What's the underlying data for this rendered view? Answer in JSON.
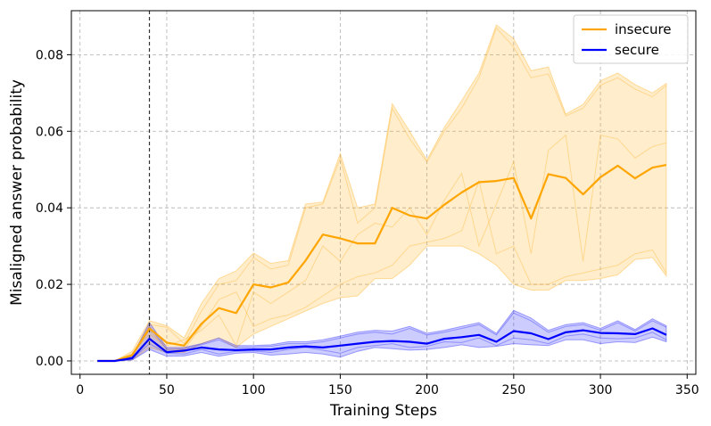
{
  "chart_data": {
    "type": "line",
    "title": "",
    "xlabel": "Training Steps",
    "ylabel": "Misaligned answer probability",
    "xlim": [
      -5,
      355
    ],
    "ylim": [
      -0.0035,
      0.0915
    ],
    "xticks": [
      0,
      50,
      100,
      150,
      200,
      250,
      300,
      350
    ],
    "yticks": [
      0.0,
      0.02,
      0.04,
      0.06,
      0.08
    ],
    "xtick_labels": [
      "0",
      "50",
      "100",
      "150",
      "200",
      "250",
      "300",
      "350"
    ],
    "ytick_labels": [
      "0.00",
      "0.02",
      "0.04",
      "0.06",
      "0.08"
    ],
    "grid": true,
    "vline_x": 40,
    "legend_position": "top-right",
    "x": [
      10,
      20,
      30,
      40,
      50,
      60,
      70,
      80,
      90,
      100,
      110,
      120,
      130,
      140,
      150,
      160,
      170,
      180,
      190,
      200,
      210,
      220,
      230,
      240,
      250,
      260,
      270,
      280,
      290,
      300,
      310,
      320,
      330,
      338
    ],
    "series": [
      {
        "name": "insecure",
        "color": "#FFA500",
        "mean": [
          0,
          0,
          0.0015,
          0.0085,
          0.0048,
          0.004,
          0.0097,
          0.0138,
          0.0125,
          0.02,
          0.0192,
          0.0205,
          0.0262,
          0.033,
          0.032,
          0.0307,
          0.0307,
          0.04,
          0.038,
          0.0372,
          0.0408,
          0.044,
          0.0467,
          0.047,
          0.0478,
          0.0372,
          0.0488,
          0.0478,
          0.0435,
          0.048,
          0.051,
          0.0477,
          0.0505,
          0.0512
        ],
        "lower": [
          0,
          0,
          0.0003,
          0.0035,
          0.0022,
          0.0022,
          0.0045,
          0.006,
          0.0035,
          0.007,
          0.009,
          0.011,
          0.013,
          0.015,
          0.0165,
          0.017,
          0.0215,
          0.0215,
          0.025,
          0.03,
          0.03,
          0.03,
          0.028,
          0.025,
          0.02,
          0.0185,
          0.0185,
          0.021,
          0.021,
          0.0215,
          0.0225,
          0.0265,
          0.027,
          0.0222
        ],
        "upper": [
          0,
          0,
          0.0025,
          0.0105,
          0.0092,
          0.006,
          0.015,
          0.0215,
          0.0235,
          0.0282,
          0.0255,
          0.0262,
          0.041,
          0.0415,
          0.0542,
          0.04,
          0.041,
          0.0672,
          0.06,
          0.0525,
          0.061,
          0.068,
          0.0752,
          0.0878,
          0.0842,
          0.0758,
          0.0768,
          0.0645,
          0.067,
          0.0732,
          0.0752,
          0.0722,
          0.07,
          0.0725
        ],
        "runs": [
          [
            0,
            0,
            0.001,
            0.0095,
            0.0088,
            0.0045,
            0.013,
            0.02,
            0.021,
            0.027,
            0.024,
            0.025,
            0.04,
            0.041,
            0.053,
            0.036,
            0.04,
            0.066,
            0.058,
            0.052,
            0.06,
            0.066,
            0.074,
            0.087,
            0.082,
            0.074,
            0.075,
            0.064,
            0.066,
            0.072,
            0.074,
            0.071,
            0.069,
            0.072
          ],
          [
            0,
            0,
            0.002,
            0.007,
            0.004,
            0.0055,
            0.008,
            0.012,
            0.004,
            0.018,
            0.015,
            0.018,
            0.021,
            0.03,
            0.026,
            0.033,
            0.036,
            0.035,
            0.04,
            0.033,
            0.042,
            0.049,
            0.03,
            0.041,
            0.052,
            0.028,
            0.055,
            0.059,
            0.026,
            0.059,
            0.058,
            0.053,
            0.056,
            0.057
          ],
          [
            0,
            0,
            0.0015,
            0.008,
            0.003,
            0.003,
            0.009,
            0.016,
            0.018,
            0.009,
            0.011,
            0.012,
            0.014,
            0.017,
            0.02,
            0.022,
            0.023,
            0.025,
            0.03,
            0.031,
            0.032,
            0.034,
            0.047,
            0.028,
            0.03,
            0.02,
            0.02,
            0.022,
            0.023,
            0.024,
            0.025,
            0.028,
            0.029,
            0.023
          ]
        ]
      },
      {
        "name": "secure",
        "color": "#0000FF",
        "mean": [
          0,
          0,
          0.0007,
          0.0058,
          0.0023,
          0.0027,
          0.0035,
          0.003,
          0.0028,
          0.003,
          0.003,
          0.0035,
          0.0038,
          0.0035,
          0.004,
          0.0045,
          0.005,
          0.0052,
          0.005,
          0.0045,
          0.0058,
          0.0062,
          0.0068,
          0.005,
          0.0078,
          0.0072,
          0.0057,
          0.0075,
          0.008,
          0.0073,
          0.0072,
          0.007,
          0.0085,
          0.0068
        ],
        "lower": [
          0,
          0,
          0.0002,
          0.003,
          0.0012,
          0.0013,
          0.0022,
          0.0012,
          0.002,
          0.0022,
          0.0015,
          0.0018,
          0.0022,
          0.0018,
          0.001,
          0.0025,
          0.0035,
          0.0032,
          0.0028,
          0.003,
          0.0035,
          0.0042,
          0.0035,
          0.0038,
          0.0045,
          0.0042,
          0.004,
          0.0055,
          0.0055,
          0.0045,
          0.005,
          0.0048,
          0.0062,
          0.005
        ],
        "upper": [
          0,
          0,
          0.0012,
          0.01,
          0.0035,
          0.0035,
          0.0045,
          0.006,
          0.004,
          0.004,
          0.0042,
          0.005,
          0.005,
          0.0055,
          0.0065,
          0.0075,
          0.008,
          0.0078,
          0.009,
          0.0072,
          0.008,
          0.009,
          0.01,
          0.0072,
          0.0132,
          0.0112,
          0.008,
          0.0095,
          0.01,
          0.0085,
          0.0105,
          0.0082,
          0.011,
          0.0092
        ],
        "runs": [
          [
            0,
            0,
            0.001,
            0.009,
            0.003,
            0.0032,
            0.0042,
            0.0055,
            0.0035,
            0.0036,
            0.0038,
            0.0045,
            0.0045,
            0.005,
            0.006,
            0.007,
            0.0075,
            0.007,
            0.0085,
            0.0068,
            0.0075,
            0.0085,
            0.0095,
            0.0068,
            0.0125,
            0.0105,
            0.0075,
            0.009,
            0.0095,
            0.008,
            0.01,
            0.0078,
            0.0105,
            0.0088
          ],
          [
            0,
            0,
            0.0005,
            0.0045,
            0.002,
            0.0018,
            0.003,
            0.0018,
            0.0025,
            0.0026,
            0.0022,
            0.003,
            0.0035,
            0.0028,
            0.002,
            0.0035,
            0.004,
            0.0045,
            0.0035,
            0.0038,
            0.005,
            0.0048,
            0.006,
            0.004,
            0.006,
            0.0055,
            0.0045,
            0.0065,
            0.007,
            0.006,
            0.0058,
            0.006,
            0.0075,
            0.0055
          ]
        ]
      }
    ]
  }
}
